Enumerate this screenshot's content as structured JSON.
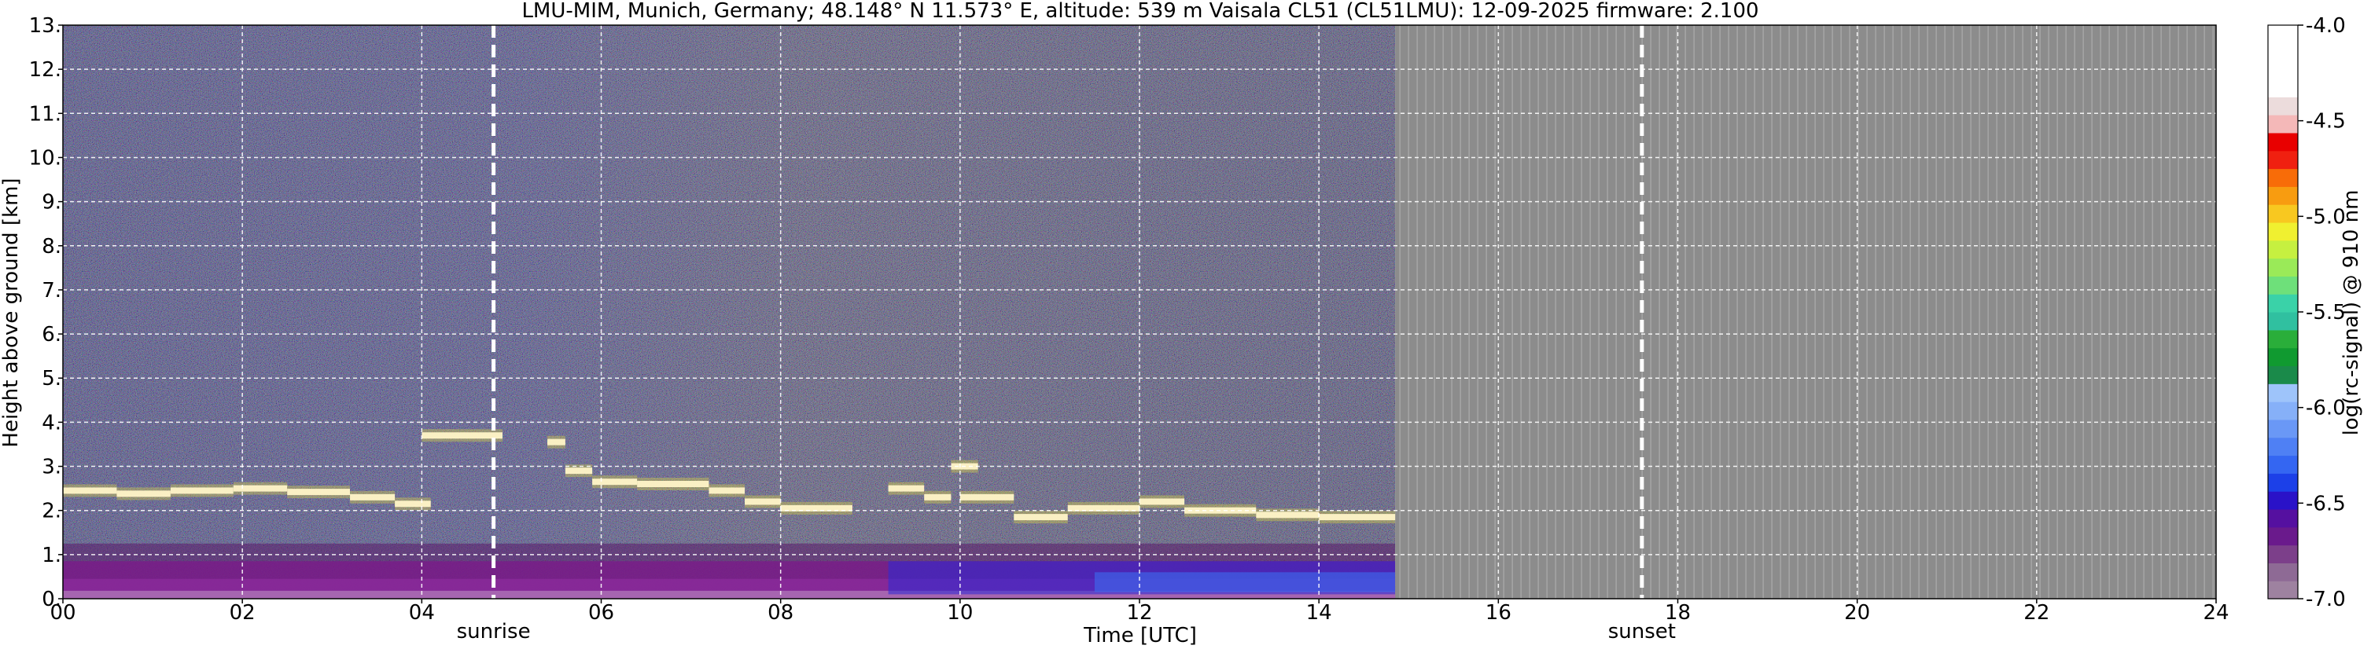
{
  "chart_data": {
    "type": "heatmap",
    "title": "LMU-MIM, Munich, Germany; 48.148° N 11.573° E, altitude: 539 m    Vaisala CL51 (CL51LMU): 12-09-2025    firmware: 2.100",
    "xlabel": "Time [UTC]",
    "ylabel": "Height above ground [km]",
    "xlim": [
      0,
      24
    ],
    "ylim": [
      0,
      13
    ],
    "x_ticks": [
      "00",
      "02",
      "04",
      "06",
      "08",
      "10",
      "12",
      "14",
      "16",
      "18",
      "20",
      "22",
      "24"
    ],
    "y_ticks": [
      "0.",
      "1.",
      "2.",
      "3.",
      "4.",
      "5.",
      "6.",
      "7.",
      "8.",
      "9.",
      "10.",
      "11.",
      "12.",
      "13."
    ],
    "grid": true,
    "data_end_hour": 14.85,
    "no_data_color": "#8c8c8c",
    "markers": [
      {
        "label": "sunrise",
        "hour": 4.8
      },
      {
        "label": "sunset",
        "hour": 17.6
      }
    ],
    "cloud_layers": [
      {
        "start": 0.0,
        "end": 0.6,
        "height": 2.45
      },
      {
        "start": 0.6,
        "end": 1.2,
        "height": 2.38
      },
      {
        "start": 1.2,
        "end": 1.9,
        "height": 2.45
      },
      {
        "start": 1.9,
        "end": 2.5,
        "height": 2.5
      },
      {
        "start": 2.5,
        "end": 3.2,
        "height": 2.42
      },
      {
        "start": 3.2,
        "end": 3.7,
        "height": 2.3
      },
      {
        "start": 3.7,
        "end": 4.1,
        "height": 2.15
      },
      {
        "start": 4.0,
        "end": 4.9,
        "height": 3.7
      },
      {
        "start": 5.4,
        "end": 5.6,
        "height": 3.55
      },
      {
        "start": 5.6,
        "end": 5.9,
        "height": 2.9
      },
      {
        "start": 5.9,
        "end": 6.4,
        "height": 2.65
      },
      {
        "start": 6.4,
        "end": 7.2,
        "height": 2.6
      },
      {
        "start": 7.2,
        "end": 7.6,
        "height": 2.45
      },
      {
        "start": 7.6,
        "end": 8.0,
        "height": 2.2
      },
      {
        "start": 8.0,
        "end": 8.8,
        "height": 2.05
      },
      {
        "start": 9.2,
        "end": 9.6,
        "height": 2.5
      },
      {
        "start": 9.6,
        "end": 9.9,
        "height": 2.3
      },
      {
        "start": 9.9,
        "end": 10.2,
        "height": 3.0
      },
      {
        "start": 10.0,
        "end": 10.6,
        "height": 2.3
      },
      {
        "start": 10.6,
        "end": 11.2,
        "height": 1.85
      },
      {
        "start": 11.2,
        "end": 12.0,
        "height": 2.05
      },
      {
        "start": 12.0,
        "end": 12.5,
        "height": 2.2
      },
      {
        "start": 12.5,
        "end": 13.3,
        "height": 2.0
      },
      {
        "start": 13.3,
        "end": 14.0,
        "height": 1.9
      },
      {
        "start": 14.0,
        "end": 14.85,
        "height": 1.85
      }
    ],
    "colorbar": {
      "label": "log(rc-signal) @ 910 nm",
      "range": [
        -7.0,
        -4.0
      ],
      "ticks": [
        "-4.0",
        "-4.5",
        "-5.0",
        "-5.5",
        "-6.0",
        "-6.5",
        "-7.0"
      ],
      "colors": [
        "#9e82a0",
        "#8e6a95",
        "#7c3f8a",
        "#6a1a8c",
        "#5510a0",
        "#2a12c8",
        "#1c40e8",
        "#3466f2",
        "#4f80f4",
        "#6a98f6",
        "#86b0f8",
        "#9ec4fa",
        "#1a8a4a",
        "#109a30",
        "#2aae3a",
        "#30c0a0",
        "#3ad2a8",
        "#6ee07a",
        "#9aea58",
        "#c6f040",
        "#f0f030",
        "#f8c820",
        "#f89c10",
        "#f86c08",
        "#f02010",
        "#e80000",
        "#f4b8b8",
        "#ecdcdc",
        "#ffffff",
        "#ffffff",
        "#ffffff",
        "#ffffff"
      ]
    }
  }
}
